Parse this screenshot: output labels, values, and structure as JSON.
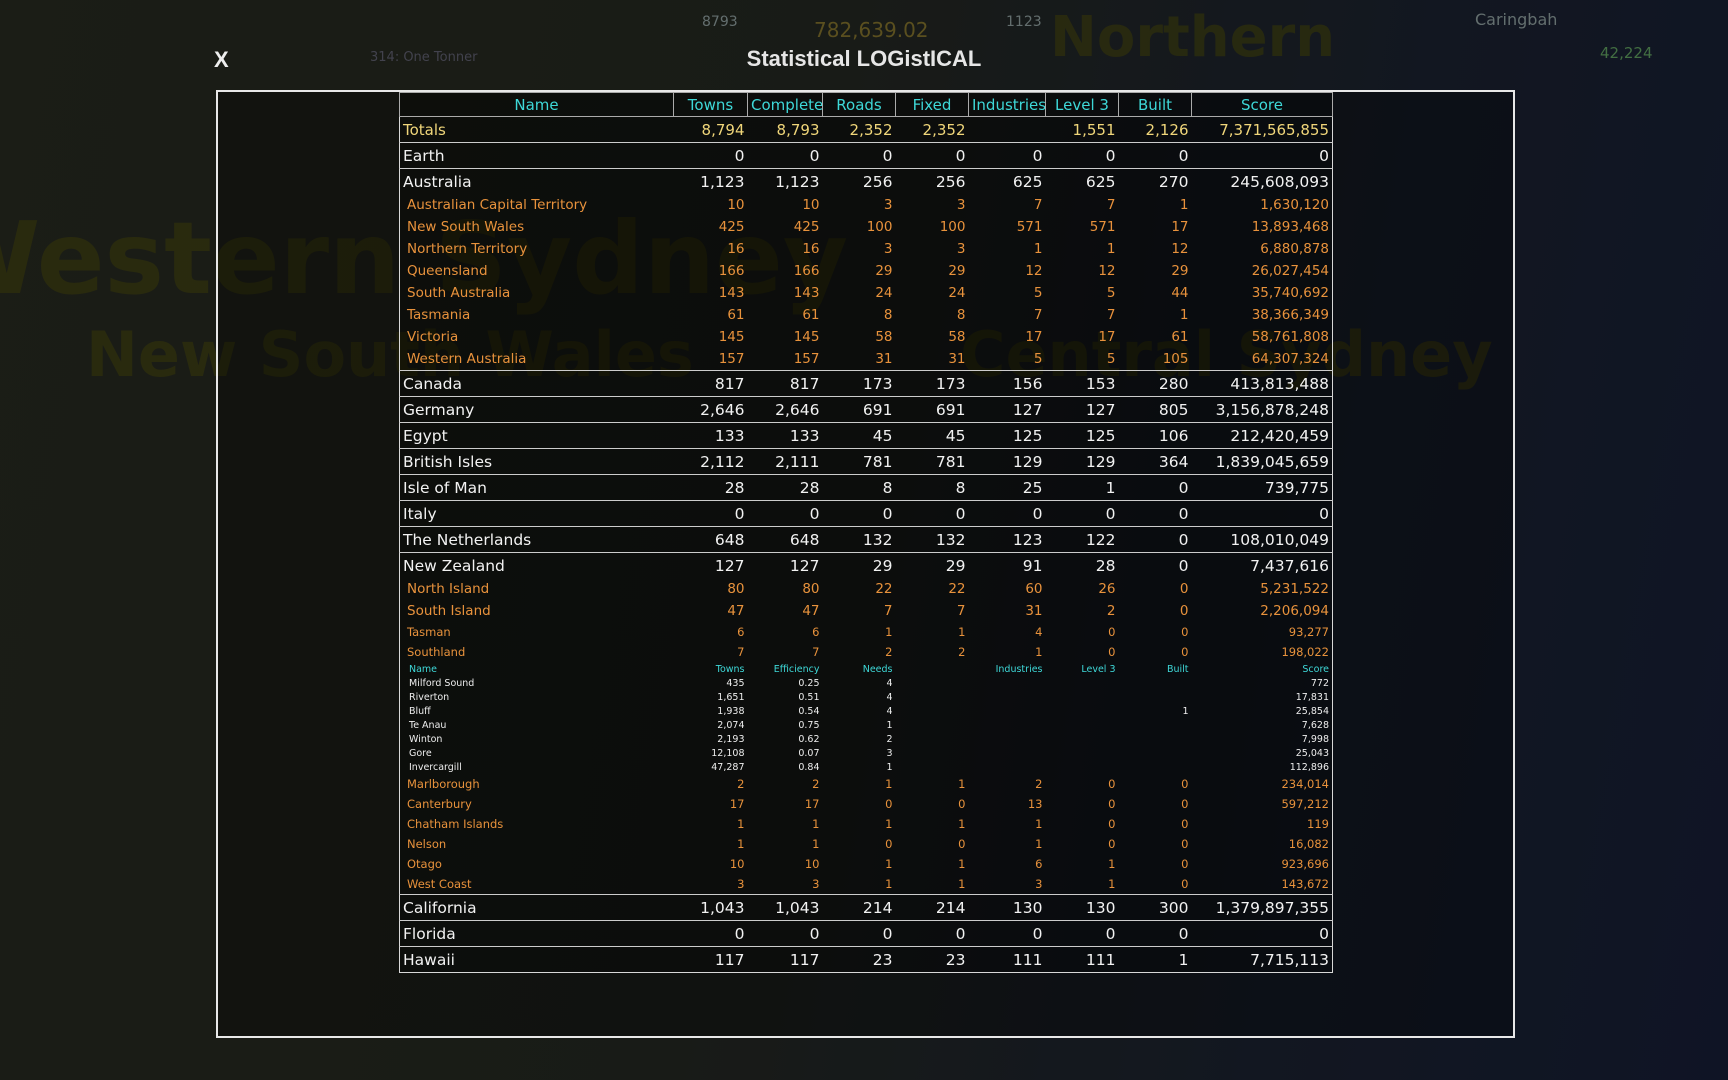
{
  "hud": {
    "towns": "8793",
    "money": "782,639.02",
    "complete": "1123",
    "vehicle": "314: One Tonner",
    "town_name": "Caringbah",
    "population": "42,224"
  },
  "map_labels": [
    "Western Sydney",
    "New South Wales",
    "Northern",
    "Central Sydney"
  ],
  "dialog": {
    "close": "X",
    "title": "Statistical LOGistICAL"
  },
  "table": {
    "header": [
      "Name",
      "Towns",
      "Complete",
      "Roads",
      "Fixed",
      "Industries",
      "Level 3",
      "Built",
      "Score"
    ],
    "rows": [
      {
        "style": "total",
        "cells": [
          "Totals",
          "8,794",
          "8,793",
          "2,352",
          "2,352",
          null,
          "1,551",
          "2,126",
          "7,371,565,855"
        ]
      },
      {
        "style": "country",
        "cells": [
          "Earth",
          "0",
          "0",
          "0",
          "0",
          "0",
          "0",
          "0",
          "0"
        ]
      },
      {
        "style": "country",
        "cells": [
          "Australia",
          "1,123",
          "1,123",
          "256",
          "256",
          "625",
          "625",
          "270",
          "245,608,093"
        ]
      },
      {
        "style": "region",
        "cells": [
          "Australian Capital Territory",
          "10",
          "10",
          "3",
          "3",
          "7",
          "7",
          "1",
          "1,630,120"
        ]
      },
      {
        "style": "region",
        "cells": [
          "New South Wales",
          "425",
          "425",
          "100",
          "100",
          "571",
          "571",
          "17",
          "13,893,468"
        ]
      },
      {
        "style": "region",
        "cells": [
          "Northern Territory",
          "16",
          "16",
          "3",
          "3",
          "1",
          "1",
          "12",
          "6,880,878"
        ]
      },
      {
        "style": "region",
        "cells": [
          "Queensland",
          "166",
          "166",
          "29",
          "29",
          "12",
          "12",
          "29",
          "26,027,454"
        ]
      },
      {
        "style": "region",
        "cells": [
          "South Australia",
          "143",
          "143",
          "24",
          "24",
          "5",
          "5",
          "44",
          "35,740,692"
        ]
      },
      {
        "style": "region",
        "cells": [
          "Tasmania",
          "61",
          "61",
          "8",
          "8",
          "7",
          "7",
          "1",
          "38,366,349"
        ]
      },
      {
        "style": "region",
        "cells": [
          "Victoria",
          "145",
          "145",
          "58",
          "58",
          "17",
          "17",
          "61",
          "58,761,808"
        ]
      },
      {
        "style": "region",
        "cells": [
          "Western Australia",
          "157",
          "157",
          "31",
          "31",
          "5",
          "5",
          "105",
          "64,307,324"
        ]
      },
      {
        "style": "country",
        "cells": [
          "Canada",
          "817",
          "817",
          "173",
          "173",
          "156",
          "153",
          "280",
          "413,813,488"
        ]
      },
      {
        "style": "country",
        "cells": [
          "Germany",
          "2,646",
          "2,646",
          "691",
          "691",
          "127",
          "127",
          "805",
          "3,156,878,248"
        ]
      },
      {
        "style": "country",
        "cells": [
          "Egypt",
          "133",
          "133",
          "45",
          "45",
          "125",
          "125",
          "106",
          "212,420,459"
        ]
      },
      {
        "style": "country",
        "cells": [
          "British Isles",
          "2,112",
          "2,111",
          "781",
          "781",
          "129",
          "129",
          "364",
          "1,839,045,659"
        ]
      },
      {
        "style": "country",
        "cells": [
          "Isle of Man",
          "28",
          "28",
          "8",
          "8",
          "25",
          "1",
          "0",
          "739,775"
        ]
      },
      {
        "style": "country",
        "cells": [
          "Italy",
          "0",
          "0",
          "0",
          "0",
          "0",
          "0",
          "0",
          "0"
        ]
      },
      {
        "style": "country",
        "cells": [
          "The Netherlands",
          "648",
          "648",
          "132",
          "132",
          "123",
          "122",
          "0",
          "108,010,049"
        ]
      },
      {
        "style": "country",
        "cells": [
          "New Zealand",
          "127",
          "127",
          "29",
          "29",
          "91",
          "28",
          "0",
          "7,437,616"
        ]
      },
      {
        "style": "region",
        "cells": [
          "North Island",
          "80",
          "80",
          "22",
          "22",
          "60",
          "26",
          "0",
          "5,231,522"
        ]
      },
      {
        "style": "region",
        "cells": [
          "South Island",
          "47",
          "47",
          "7",
          "7",
          "31",
          "2",
          "0",
          "2,206,094"
        ]
      },
      {
        "style": "district",
        "cells": [
          "Tasman",
          "6",
          "6",
          "1",
          "1",
          "4",
          "0",
          "0",
          "93,277"
        ]
      },
      {
        "style": "district",
        "cells": [
          "Southland",
          "7",
          "7",
          "2",
          "2",
          "1",
          "0",
          "0",
          "198,022"
        ]
      },
      {
        "style": "subheader",
        "cells": [
          "Name",
          "Towns",
          "Efficiency",
          "Needs",
          null,
          "Industries",
          "Level 3",
          "Built",
          "Score"
        ]
      },
      {
        "style": "town",
        "cells": [
          "Milford Sound",
          "435",
          "0.25",
          "4",
          null,
          null,
          null,
          null,
          "772"
        ]
      },
      {
        "style": "town",
        "cells": [
          "Riverton",
          "1,651",
          "0.51",
          "4",
          null,
          null,
          null,
          null,
          "17,831"
        ]
      },
      {
        "style": "town",
        "cells": [
          "Bluff",
          "1,938",
          "0.54",
          "4",
          null,
          null,
          null,
          "1",
          "25,854"
        ]
      },
      {
        "style": "town",
        "cells": [
          "Te Anau",
          "2,074",
          "0.75",
          "1",
          null,
          null,
          null,
          null,
          "7,628"
        ]
      },
      {
        "style": "town",
        "cells": [
          "Winton",
          "2,193",
          "0.62",
          "2",
          null,
          null,
          null,
          null,
          "7,998"
        ]
      },
      {
        "style": "town",
        "cells": [
          "Gore",
          "12,108",
          "0.07",
          "3",
          null,
          null,
          null,
          null,
          "25,043"
        ]
      },
      {
        "style": "town",
        "cells": [
          "Invercargill",
          "47,287",
          "0.84",
          "1",
          null,
          null,
          null,
          null,
          "112,896"
        ]
      },
      {
        "style": "district",
        "cells": [
          "Marlborough",
          "2",
          "2",
          "1",
          "1",
          "2",
          "0",
          "0",
          "234,014"
        ]
      },
      {
        "style": "district",
        "cells": [
          "Canterbury",
          "17",
          "17",
          "0",
          "0",
          "13",
          "0",
          "0",
          "597,212"
        ]
      },
      {
        "style": "district",
        "cells": [
          "Chatham Islands",
          "1",
          "1",
          "1",
          "1",
          "1",
          "0",
          "0",
          "119"
        ]
      },
      {
        "style": "district",
        "cells": [
          "Nelson",
          "1",
          "1",
          "0",
          "0",
          "1",
          "0",
          "0",
          "16,082"
        ]
      },
      {
        "style": "district",
        "cells": [
          "Otago",
          "10",
          "10",
          "1",
          "1",
          "6",
          "1",
          "0",
          "923,696"
        ]
      },
      {
        "style": "district",
        "cells": [
          "West Coast",
          "3",
          "3",
          "1",
          "1",
          "3",
          "1",
          "0",
          "143,672"
        ]
      },
      {
        "style": "country",
        "cells": [
          "California",
          "1,043",
          "1,043",
          "214",
          "214",
          "130",
          "130",
          "300",
          "1,379,897,355"
        ]
      },
      {
        "style": "country",
        "cells": [
          "Florida",
          "0",
          "0",
          "0",
          "0",
          "0",
          "0",
          "0",
          "0"
        ]
      },
      {
        "style": "country",
        "cells": [
          "Hawaii",
          "117",
          "117",
          "23",
          "23",
          "111",
          "111",
          "1",
          "7,715,113"
        ]
      }
    ]
  }
}
